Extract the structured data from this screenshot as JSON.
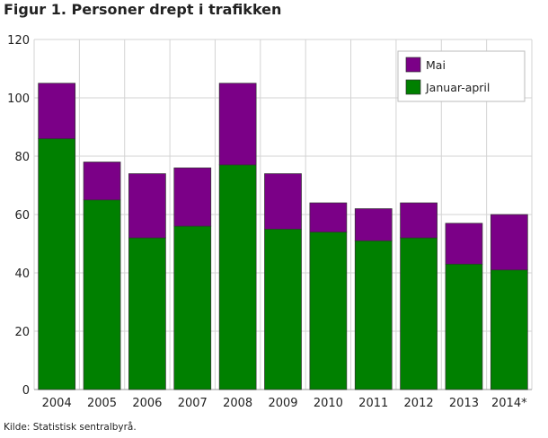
{
  "chart_data": {
    "type": "bar",
    "stacked": true,
    "title": "Figur 1. Personer drept i trafikken",
    "source": "Kilde: Statistisk sentralbyrå.",
    "categories": [
      "2004",
      "2005",
      "2006",
      "2007",
      "2008",
      "2009",
      "2010",
      "2011",
      "2012",
      "2013",
      "2014*"
    ],
    "series": [
      {
        "name": "Januar-april",
        "color": "#008000",
        "values": [
          86,
          65,
          52,
          56,
          77,
          55,
          54,
          51,
          52,
          43,
          41
        ]
      },
      {
        "name": "Mai",
        "color": "#7b0087",
        "values": [
          19,
          13,
          22,
          20,
          28,
          19,
          10,
          11,
          12,
          14,
          19
        ]
      }
    ],
    "yticks": [
      0,
      20,
      40,
      60,
      80,
      100,
      120
    ],
    "ylim": [
      0,
      120
    ],
    "xlabel": "",
    "ylabel": "",
    "grid": true,
    "legend_position": "top-right",
    "legend_order": [
      "Mai",
      "Januar-april"
    ]
  }
}
